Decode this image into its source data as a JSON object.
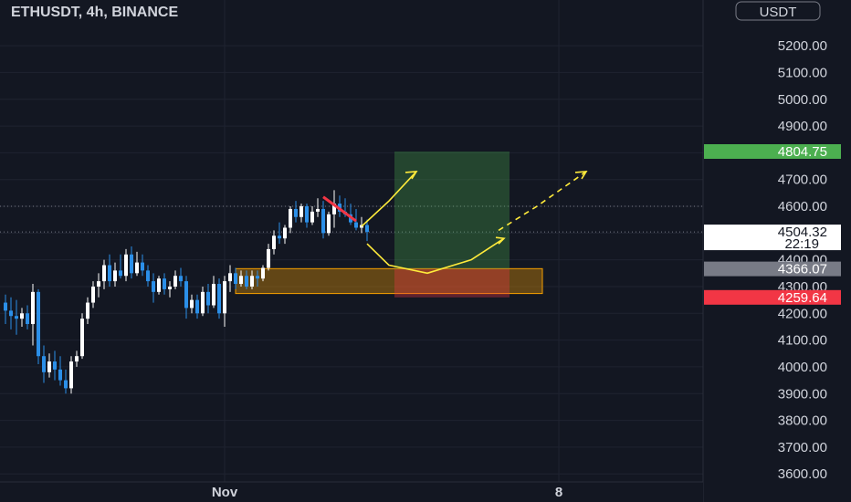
{
  "header": {
    "symbol_title": "ETHUSDT, 4h, BINANCE",
    "currency": "USDT"
  },
  "chart_data": {
    "type": "candlestick",
    "title": "ETHUSDT, 4h, BINANCE",
    "currency": "USDT",
    "y_ticks": [
      5200,
      5100,
      5000,
      4900,
      4800,
      4700,
      4600,
      4500,
      4400,
      4300,
      4200,
      4100,
      4000,
      3900,
      3800,
      3700,
      3600
    ],
    "y_tick_labels": [
      "5200.00",
      "5100.00",
      "5000.00",
      "4900.00",
      "4800.00",
      "4700.00",
      "4600.00",
      "4500.00",
      "4400.00",
      "4300.00",
      "4200.00",
      "4100.00",
      "4000.00",
      "3900.00",
      "3800.00",
      "3700.00",
      "3600.00"
    ],
    "ylim": [
      3570,
      5330
    ],
    "x_tick_labels": [
      {
        "label": "Nov",
        "candle_index": 40
      },
      {
        "label": "8",
        "candle_index": 101
      }
    ],
    "colors": {
      "up": "#ffffff",
      "down": "#2b8fe8",
      "last_bar_up": "#26a69a",
      "grid": "#1f2330",
      "text": "#d1d4dc"
    },
    "candles": [
      [
        4240,
        4270,
        4160,
        4210
      ],
      [
        4210,
        4260,
        4140,
        4190
      ],
      [
        4190,
        4250,
        4120,
        4180
      ],
      [
        4180,
        4220,
        4150,
        4200
      ],
      [
        4200,
        4230,
        4140,
        4160
      ],
      [
        4160,
        4310,
        4080,
        4280
      ],
      [
        4280,
        4290,
        4010,
        4040
      ],
      [
        4040,
        4080,
        3940,
        3980
      ],
      [
        3980,
        4050,
        3960,
        4020
      ],
      [
        4020,
        4060,
        3950,
        3990
      ],
      [
        3990,
        4040,
        3930,
        3950
      ],
      [
        3950,
        3990,
        3900,
        3920
      ],
      [
        3920,
        4040,
        3900,
        4020
      ],
      [
        4020,
        4060,
        4000,
        4040
      ],
      [
        4040,
        4200,
        4030,
        4180
      ],
      [
        4180,
        4260,
        4160,
        4240
      ],
      [
        4240,
        4320,
        4220,
        4300
      ],
      [
        4300,
        4350,
        4260,
        4320
      ],
      [
        4320,
        4400,
        4290,
        4380
      ],
      [
        4380,
        4420,
        4300,
        4320
      ],
      [
        4320,
        4390,
        4300,
        4360
      ],
      [
        4360,
        4420,
        4330,
        4340
      ],
      [
        4340,
        4440,
        4320,
        4420
      ],
      [
        4420,
        4450,
        4330,
        4350
      ],
      [
        4350,
        4430,
        4340,
        4390
      ],
      [
        4390,
        4420,
        4340,
        4360
      ],
      [
        4360,
        4380,
        4300,
        4320
      ],
      [
        4320,
        4350,
        4240,
        4280
      ],
      [
        4280,
        4340,
        4270,
        4330
      ],
      [
        4330,
        4350,
        4270,
        4290
      ],
      [
        4290,
        4320,
        4260,
        4300
      ],
      [
        4300,
        4360,
        4290,
        4340
      ],
      [
        4340,
        4370,
        4300,
        4320
      ],
      [
        4320,
        4340,
        4180,
        4220
      ],
      [
        4220,
        4270,
        4200,
        4250
      ],
      [
        4250,
        4270,
        4180,
        4200
      ],
      [
        4200,
        4300,
        4190,
        4280
      ],
      [
        4280,
        4310,
        4200,
        4230
      ],
      [
        4230,
        4340,
        4220,
        4310
      ],
      [
        4310,
        4330,
        4180,
        4200
      ],
      [
        4200,
        4340,
        4150,
        4320
      ],
      [
        4320,
        4380,
        4280,
        4350
      ],
      [
        4350,
        4370,
        4290,
        4310
      ],
      [
        4310,
        4360,
        4300,
        4340
      ],
      [
        4340,
        4360,
        4290,
        4300
      ],
      [
        4300,
        4360,
        4290,
        4340
      ],
      [
        4340,
        4360,
        4300,
        4330
      ],
      [
        4330,
        4380,
        4320,
        4370
      ],
      [
        4370,
        4460,
        4360,
        4440
      ],
      [
        4440,
        4510,
        4420,
        4490
      ],
      [
        4490,
        4540,
        4460,
        4480
      ],
      [
        4480,
        4530,
        4460,
        4520
      ],
      [
        4520,
        4600,
        4500,
        4590
      ],
      [
        4590,
        4620,
        4540,
        4560
      ],
      [
        4560,
        4610,
        4540,
        4600
      ],
      [
        4600,
        4610,
        4520,
        4540
      ],
      [
        4540,
        4600,
        4530,
        4580
      ],
      [
        4580,
        4630,
        4560,
        4590
      ],
      [
        4590,
        4620,
        4480,
        4500
      ],
      [
        4500,
        4580,
        4490,
        4570
      ],
      [
        4570,
        4660,
        4520,
        4610
      ],
      [
        4610,
        4640,
        4560,
        4580
      ],
      [
        4580,
        4630,
        4560,
        4570
      ],
      [
        4570,
        4610,
        4530,
        4540
      ],
      [
        4540,
        4590,
        4510,
        4520
      ],
      [
        4520,
        4560,
        4500,
        4530
      ],
      [
        4530,
        4550,
        4470,
        4504
      ]
    ],
    "current_price": {
      "label": "4504.32",
      "countdown": "22:19",
      "value": 4504.32
    },
    "target_price": {
      "label": "4804.75",
      "value": 4804.75,
      "color": "#4caf50"
    },
    "entry_price": {
      "label": "4366.07",
      "value": 4366.07,
      "color": "#787b86"
    },
    "stop_price": {
      "label": "4259.64",
      "value": 4259.64,
      "color": "#f23645"
    },
    "dotted_level": 4600,
    "support_zone": {
      "from_index": 42,
      "to_index": 98,
      "top": 4367,
      "bottom": 4274,
      "color": "#f59f00"
    },
    "position_tool": {
      "from_index": 71,
      "to_index": 92,
      "target": 4804.75,
      "entry": 4366.07,
      "stop": 4259.64
    },
    "annotations": [
      {
        "type": "segment",
        "color": "#f23645",
        "points": [
          [
            58,
            4635
          ],
          [
            64,
            4545
          ]
        ]
      },
      {
        "type": "arrow",
        "color": "#ffeb3b",
        "points": [
          [
            65,
            4525
          ],
          [
            70,
            4620
          ],
          [
            75,
            4730
          ]
        ]
      },
      {
        "type": "curve",
        "color": "#ffeb3b",
        "points": [
          [
            66,
            4460
          ],
          [
            70,
            4380
          ],
          [
            77,
            4350
          ],
          [
            85,
            4400
          ],
          [
            91,
            4480
          ]
        ]
      },
      {
        "type": "dashed-arrow",
        "color": "#ffeb3b",
        "points": [
          [
            90,
            4510
          ],
          [
            97,
            4600
          ],
          [
            106,
            4730
          ]
        ]
      }
    ]
  }
}
